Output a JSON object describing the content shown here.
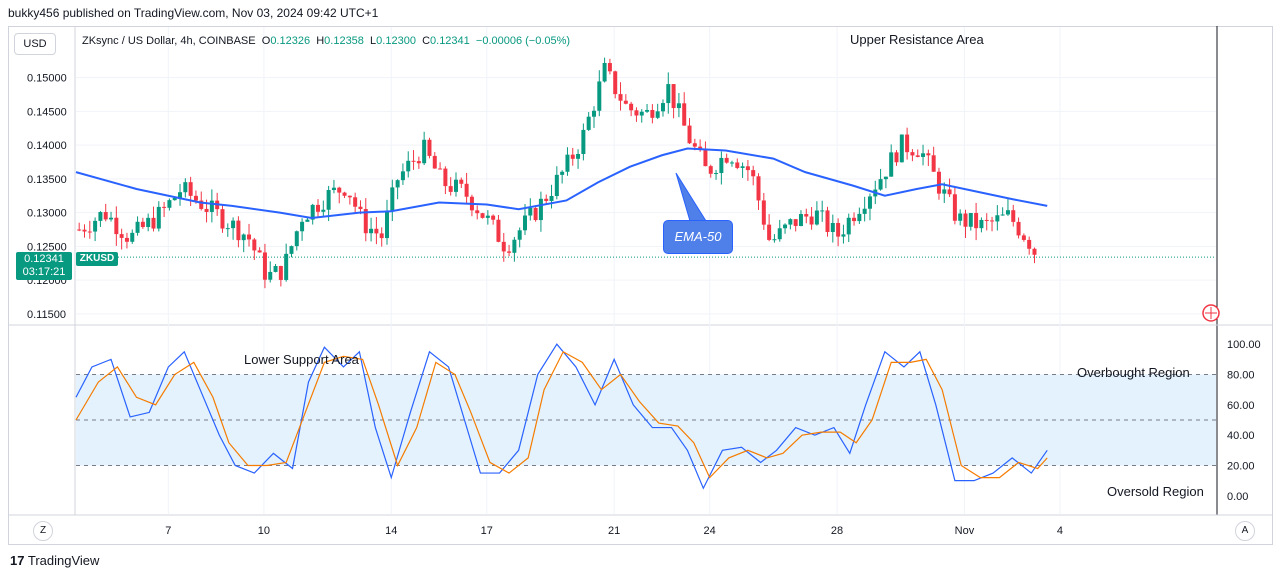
{
  "header": {
    "publish_line": "bukky456 published on TradingView.com, Nov 03, 2024 09:42 UTC+1"
  },
  "toolbar": {
    "currency": "USD",
    "zoom_left": "Z",
    "auto_right": "A"
  },
  "legend": {
    "symbol": "ZKsync / US Dollar, 4h, COINBASE",
    "o_label": "O",
    "o_value": "0.12326",
    "h_label": "H",
    "h_value": "0.12358",
    "l_label": "L",
    "l_value": "0.12300",
    "c_label": "C",
    "c_value": "0.12341",
    "change": "−0.00006 (−0.05%)"
  },
  "price_tag": {
    "price": "0.12341",
    "countdown": "03:17:21",
    "symbol": "ZKUSD"
  },
  "annotations": {
    "upper": "Upper Resistance Area",
    "lower": "Lower Support Area",
    "overbought": "Overbought Region",
    "oversold": "Oversold Region",
    "ema": "EMA-50"
  },
  "footer": {
    "brand": "TradingView"
  },
  "colors": {
    "up": "#089981",
    "down": "#f23645",
    "ema": "#2962ff",
    "stoch_k": "#2962ff",
    "stoch_d": "#f57c00",
    "band_fill": "#e3f2fd"
  },
  "chart_data": [
    {
      "type": "candlestick",
      "title": "ZKsync / US Dollar, 4h, COINBASE",
      "ylim": [
        0.1135,
        0.1575
      ],
      "y_ticks": [
        "0.15000",
        "0.14500",
        "0.14000",
        "0.13500",
        "0.13000",
        "0.12500",
        "0.12000",
        "0.11500"
      ],
      "y_tick_values": [
        0.15,
        0.145,
        0.14,
        0.135,
        0.13,
        0.125,
        0.12,
        0.115
      ],
      "x_ticks": [
        "7",
        "10",
        "14",
        "17",
        "21",
        "24",
        "28",
        "Nov",
        "4"
      ],
      "x_tick_days": [
        7,
        10,
        14,
        17,
        21,
        24,
        28,
        32,
        35
      ],
      "xlim_days": [
        4.1,
        39.9
      ],
      "last_close": 0.12341,
      "price_path": [
        {
          "d": 4.2,
          "p": 0.1275
        },
        {
          "d": 5.0,
          "p": 0.13
        },
        {
          "d": 5.8,
          "p": 0.1262
        },
        {
          "d": 6.8,
          "p": 0.13
        },
        {
          "d": 7.4,
          "p": 0.1335
        },
        {
          "d": 8.6,
          "p": 0.1295
        },
        {
          "d": 9.5,
          "p": 0.1265
        },
        {
          "d": 10.1,
          "p": 0.1205
        },
        {
          "d": 10.6,
          "p": 0.1215
        },
        {
          "d": 11.2,
          "p": 0.1295
        },
        {
          "d": 12.0,
          "p": 0.1325
        },
        {
          "d": 12.6,
          "p": 0.134
        },
        {
          "d": 13.1,
          "p": 0.1285
        },
        {
          "d": 13.7,
          "p": 0.1265
        },
        {
          "d": 14.2,
          "p": 0.135
        },
        {
          "d": 15.0,
          "p": 0.1395
        },
        {
          "d": 15.6,
          "p": 0.1345
        },
        {
          "d": 16.3,
          "p": 0.133
        },
        {
          "d": 17.0,
          "p": 0.129
        },
        {
          "d": 17.6,
          "p": 0.125
        },
        {
          "d": 18.5,
          "p": 0.13
        },
        {
          "d": 19.4,
          "p": 0.136
        },
        {
          "d": 20.0,
          "p": 0.141
        },
        {
          "d": 20.7,
          "p": 0.151
        },
        {
          "d": 21.4,
          "p": 0.1455
        },
        {
          "d": 22.0,
          "p": 0.1445
        },
        {
          "d": 22.7,
          "p": 0.1485
        },
        {
          "d": 23.3,
          "p": 0.1415
        },
        {
          "d": 23.9,
          "p": 0.136
        },
        {
          "d": 24.6,
          "p": 0.139
        },
        {
          "d": 25.3,
          "p": 0.136
        },
        {
          "d": 25.9,
          "p": 0.1255
        },
        {
          "d": 26.6,
          "p": 0.1285
        },
        {
          "d": 27.3,
          "p": 0.13
        },
        {
          "d": 28.0,
          "p": 0.1265
        },
        {
          "d": 28.6,
          "p": 0.1305
        },
        {
          "d": 29.4,
          "p": 0.1355
        },
        {
          "d": 30.0,
          "p": 0.14
        },
        {
          "d": 30.6,
          "p": 0.1395
        },
        {
          "d": 31.2,
          "p": 0.134
        },
        {
          "d": 31.8,
          "p": 0.129
        },
        {
          "d": 32.6,
          "p": 0.128
        },
        {
          "d": 33.4,
          "p": 0.1295
        },
        {
          "d": 34.0,
          "p": 0.126
        },
        {
          "d": 34.3,
          "p": 0.1234
        }
      ],
      "ema_50": [
        {
          "d": 4.1,
          "p": 0.136
        },
        {
          "d": 6.0,
          "p": 0.1335
        },
        {
          "d": 8.0,
          "p": 0.1315
        },
        {
          "d": 9.0,
          "p": 0.131
        },
        {
          "d": 10.5,
          "p": 0.13
        },
        {
          "d": 11.5,
          "p": 0.1292
        },
        {
          "d": 13.0,
          "p": 0.13
        },
        {
          "d": 14.0,
          "p": 0.1302
        },
        {
          "d": 15.5,
          "p": 0.1315
        },
        {
          "d": 17.0,
          "p": 0.1312
        },
        {
          "d": 18.0,
          "p": 0.1305
        },
        {
          "d": 19.5,
          "p": 0.1318
        },
        {
          "d": 20.5,
          "p": 0.1345
        },
        {
          "d": 21.5,
          "p": 0.1368
        },
        {
          "d": 22.5,
          "p": 0.1385
        },
        {
          "d": 23.3,
          "p": 0.1395
        },
        {
          "d": 24.5,
          "p": 0.1392
        },
        {
          "d": 26.0,
          "p": 0.138
        },
        {
          "d": 27.0,
          "p": 0.136
        },
        {
          "d": 28.5,
          "p": 0.134
        },
        {
          "d": 29.5,
          "p": 0.1325
        },
        {
          "d": 30.5,
          "p": 0.1335
        },
        {
          "d": 31.3,
          "p": 0.1342
        },
        {
          "d": 32.5,
          "p": 0.133
        },
        {
          "d": 33.5,
          "p": 0.132
        },
        {
          "d": 34.6,
          "p": 0.131
        }
      ]
    },
    {
      "type": "line",
      "title": "",
      "ylim": [
        -12,
        112
      ],
      "y_ticks": [
        "100.00",
        "80.00",
        "60.00",
        "40.00",
        "20.00",
        "0.00"
      ],
      "y_tick_values": [
        100,
        80,
        60,
        40,
        20,
        0
      ],
      "band": [
        20,
        80
      ],
      "mid_line": 50,
      "series": [
        {
          "key": "k",
          "values": [
            {
              "d": 4.1,
              "p": 65
            },
            {
              "d": 4.6,
              "p": 85
            },
            {
              "d": 5.2,
              "p": 90
            },
            {
              "d": 5.8,
              "p": 52
            },
            {
              "d": 6.4,
              "p": 55
            },
            {
              "d": 7.0,
              "p": 85
            },
            {
              "d": 7.5,
              "p": 95
            },
            {
              "d": 8.0,
              "p": 70
            },
            {
              "d": 8.6,
              "p": 40
            },
            {
              "d": 9.1,
              "p": 20
            },
            {
              "d": 9.7,
              "p": 15
            },
            {
              "d": 10.3,
              "p": 28
            },
            {
              "d": 10.9,
              "p": 18
            },
            {
              "d": 11.4,
              "p": 75
            },
            {
              "d": 11.9,
              "p": 98
            },
            {
              "d": 12.5,
              "p": 85
            },
            {
              "d": 13.0,
              "p": 95
            },
            {
              "d": 13.5,
              "p": 45
            },
            {
              "d": 14.0,
              "p": 12
            },
            {
              "d": 14.6,
              "p": 55
            },
            {
              "d": 15.2,
              "p": 95
            },
            {
              "d": 15.8,
              "p": 85
            },
            {
              "d": 16.3,
              "p": 50
            },
            {
              "d": 16.8,
              "p": 15
            },
            {
              "d": 17.4,
              "p": 15
            },
            {
              "d": 18.0,
              "p": 30
            },
            {
              "d": 18.6,
              "p": 80
            },
            {
              "d": 19.2,
              "p": 100
            },
            {
              "d": 19.8,
              "p": 85
            },
            {
              "d": 20.4,
              "p": 60
            },
            {
              "d": 21.0,
              "p": 90
            },
            {
              "d": 21.6,
              "p": 60
            },
            {
              "d": 22.2,
              "p": 45
            },
            {
              "d": 22.8,
              "p": 45
            },
            {
              "d": 23.3,
              "p": 30
            },
            {
              "d": 23.8,
              "p": 5
            },
            {
              "d": 24.4,
              "p": 30
            },
            {
              "d": 25.0,
              "p": 32
            },
            {
              "d": 25.6,
              "p": 22
            },
            {
              "d": 26.1,
              "p": 30
            },
            {
              "d": 26.7,
              "p": 45
            },
            {
              "d": 27.3,
              "p": 40
            },
            {
              "d": 27.9,
              "p": 45
            },
            {
              "d": 28.4,
              "p": 28
            },
            {
              "d": 28.9,
              "p": 60
            },
            {
              "d": 29.5,
              "p": 95
            },
            {
              "d": 30.1,
              "p": 85
            },
            {
              "d": 30.6,
              "p": 95
            },
            {
              "d": 31.1,
              "p": 60
            },
            {
              "d": 31.7,
              "p": 10
            },
            {
              "d": 32.3,
              "p": 10
            },
            {
              "d": 32.9,
              "p": 15
            },
            {
              "d": 33.5,
              "p": 25
            },
            {
              "d": 34.1,
              "p": 15
            },
            {
              "d": 34.6,
              "p": 30
            }
          ]
        },
        {
          "key": "d",
          "values": [
            {
              "d": 4.1,
              "p": 50
            },
            {
              "d": 4.8,
              "p": 75
            },
            {
              "d": 5.4,
              "p": 85
            },
            {
              "d": 6.0,
              "p": 65
            },
            {
              "d": 6.6,
              "p": 60
            },
            {
              "d": 7.2,
              "p": 80
            },
            {
              "d": 7.8,
              "p": 88
            },
            {
              "d": 8.4,
              "p": 65
            },
            {
              "d": 8.9,
              "p": 35
            },
            {
              "d": 9.5,
              "p": 20
            },
            {
              "d": 10.1,
              "p": 20
            },
            {
              "d": 10.7,
              "p": 22
            },
            {
              "d": 11.3,
              "p": 55
            },
            {
              "d": 11.9,
              "p": 88
            },
            {
              "d": 12.5,
              "p": 92
            },
            {
              "d": 13.1,
              "p": 90
            },
            {
              "d": 13.6,
              "p": 60
            },
            {
              "d": 14.2,
              "p": 20
            },
            {
              "d": 14.8,
              "p": 45
            },
            {
              "d": 15.4,
              "p": 88
            },
            {
              "d": 16.0,
              "p": 80
            },
            {
              "d": 16.5,
              "p": 55
            },
            {
              "d": 17.1,
              "p": 22
            },
            {
              "d": 17.7,
              "p": 15
            },
            {
              "d": 18.3,
              "p": 25
            },
            {
              "d": 18.8,
              "p": 70
            },
            {
              "d": 19.4,
              "p": 95
            },
            {
              "d": 20.0,
              "p": 88
            },
            {
              "d": 20.6,
              "p": 70
            },
            {
              "d": 21.2,
              "p": 80
            },
            {
              "d": 21.8,
              "p": 62
            },
            {
              "d": 22.4,
              "p": 48
            },
            {
              "d": 23.0,
              "p": 46
            },
            {
              "d": 23.5,
              "p": 35
            },
            {
              "d": 24.0,
              "p": 12
            },
            {
              "d": 24.6,
              "p": 25
            },
            {
              "d": 25.2,
              "p": 30
            },
            {
              "d": 25.8,
              "p": 25
            },
            {
              "d": 26.3,
              "p": 28
            },
            {
              "d": 26.9,
              "p": 40
            },
            {
              "d": 27.5,
              "p": 42
            },
            {
              "d": 28.1,
              "p": 42
            },
            {
              "d": 28.6,
              "p": 35
            },
            {
              "d": 29.1,
              "p": 50
            },
            {
              "d": 29.7,
              "p": 88
            },
            {
              "d": 30.3,
              "p": 88
            },
            {
              "d": 30.8,
              "p": 90
            },
            {
              "d": 31.3,
              "p": 70
            },
            {
              "d": 31.9,
              "p": 20
            },
            {
              "d": 32.5,
              "p": 12
            },
            {
              "d": 33.1,
              "p": 12
            },
            {
              "d": 33.7,
              "p": 22
            },
            {
              "d": 34.3,
              "p": 18
            },
            {
              "d": 34.6,
              "p": 25
            }
          ]
        }
      ]
    }
  ]
}
